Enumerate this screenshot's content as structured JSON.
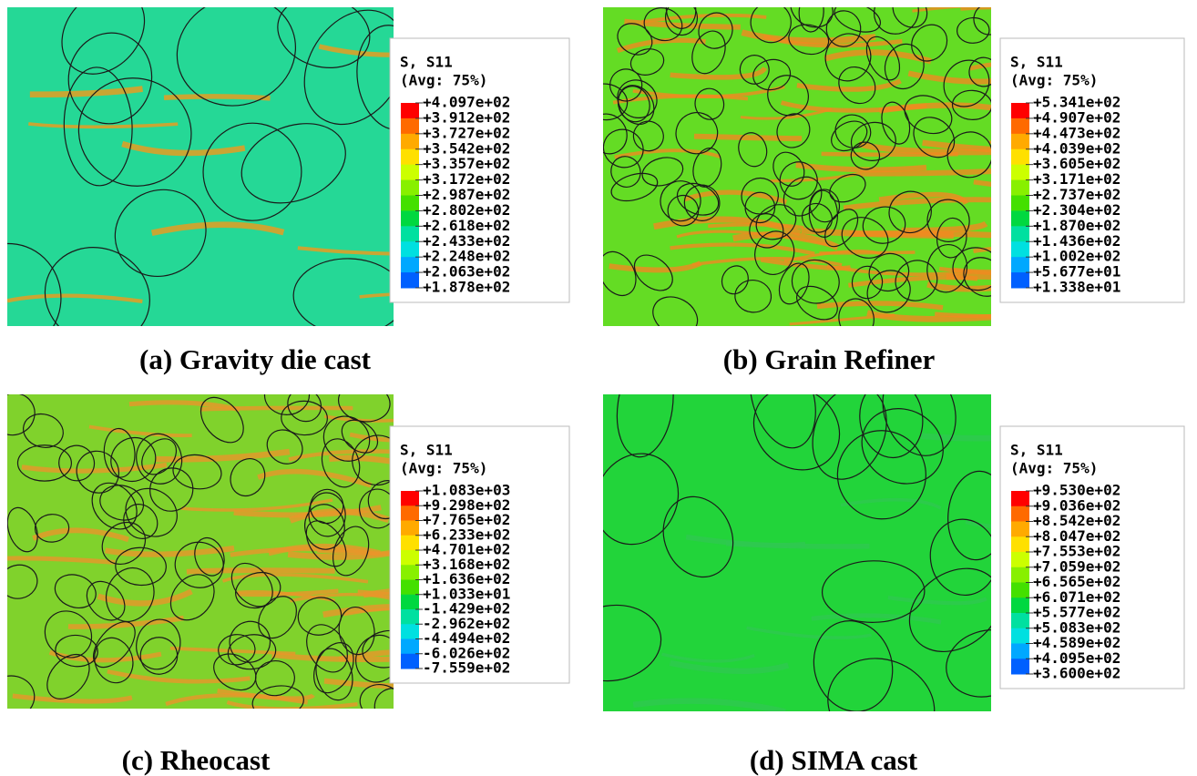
{
  "panels": [
    {
      "caption": "(a) Gravity die cast",
      "legend": {
        "title": "S, S11",
        "subtitle": "(Avg: 75%)",
        "labels": [
          "+4.097e+02",
          "+3.912e+02",
          "+3.727e+02",
          "+3.542e+02",
          "+3.357e+02",
          "+3.172e+02",
          "+2.987e+02",
          "+2.802e+02",
          "+2.618e+02",
          "+2.433e+02",
          "+2.248e+02",
          "+2.063e+02",
          "+1.878e+02"
        ]
      }
    },
    {
      "caption": "(b) Grain Refiner",
      "legend": {
        "title": "S, S11",
        "subtitle": "(Avg: 75%)",
        "labels": [
          "+5.341e+02",
          "+4.907e+02",
          "+4.473e+02",
          "+4.039e+02",
          "+3.605e+02",
          "+3.171e+02",
          "+2.737e+02",
          "+2.304e+02",
          "+1.870e+02",
          "+1.436e+02",
          "+1.002e+02",
          "+5.677e+01",
          "+1.338e+01"
        ]
      }
    },
    {
      "caption": "(c) Rheocast",
      "legend": {
        "title": "S, S11",
        "subtitle": "(Avg: 75%)",
        "labels": [
          "+1.083e+03",
          "+9.298e+02",
          "+7.765e+02",
          "+6.233e+02",
          "+4.701e+02",
          "+3.168e+02",
          "+1.636e+02",
          "+1.033e+01",
          "-1.429e+02",
          "-2.962e+02",
          "-4.494e+02",
          "-6.026e+02",
          "-7.559e+02"
        ]
      }
    },
    {
      "caption": "(d) SIMA cast",
      "legend": {
        "title": "S, S11",
        "subtitle": "(Avg: 75%)",
        "labels": [
          "+9.530e+02",
          "+9.036e+02",
          "+8.542e+02",
          "+8.047e+02",
          "+7.553e+02",
          "+7.059e+02",
          "+6.565e+02",
          "+6.071e+02",
          "+5.577e+02",
          "+5.083e+02",
          "+4.589e+02",
          "+4.095e+02",
          "+3.600e+02"
        ]
      }
    }
  ]
}
